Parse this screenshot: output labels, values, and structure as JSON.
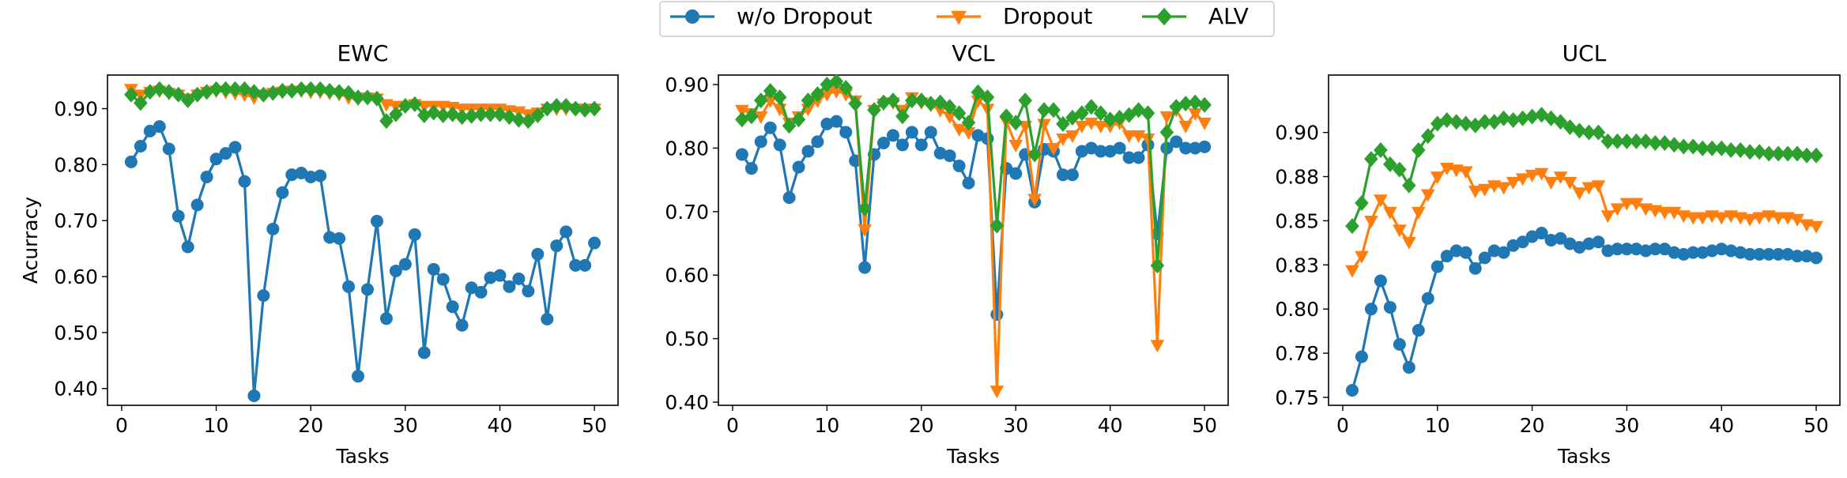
{
  "legend": {
    "placement": "top-center",
    "entries": [
      {
        "label": "w/o Dropout",
        "color": "#1f77b4",
        "marker": "circle"
      },
      {
        "label": "Dropout",
        "color": "#ff7f0e",
        "marker": "triangle-down"
      },
      {
        "label": "ALV",
        "color": "#2ca02c",
        "marker": "diamond"
      }
    ]
  },
  "chart_data": [
    {
      "type": "line",
      "title": "EWC",
      "xlabel": "Tasks",
      "ylabel": "Acurracy",
      "xlim": [
        -1.5,
        52.5
      ],
      "ylim": [
        0.37,
        0.96
      ],
      "xticks": [
        0,
        10,
        20,
        30,
        40,
        50
      ],
      "xtick_labels": [
        "0",
        "10",
        "20",
        "30",
        "40",
        "50"
      ],
      "yticks": [
        0.4,
        0.5,
        0.6,
        0.7,
        0.8,
        0.9
      ],
      "ytick_labels": [
        "0.40",
        "0.50",
        "0.60",
        "0.70",
        "0.80",
        "0.90"
      ],
      "grid": false,
      "x_start": 1,
      "series": [
        {
          "name": "w/o Dropout",
          "color": "#1f77b4",
          "marker": "circle",
          "values": [
            0.805,
            0.833,
            0.86,
            0.868,
            0.828,
            0.708,
            0.653,
            0.728,
            0.778,
            0.81,
            0.82,
            0.831,
            0.77,
            0.387,
            0.566,
            0.685,
            0.75,
            0.782,
            0.785,
            0.778,
            0.78,
            0.67,
            0.668,
            0.582,
            0.422,
            0.577,
            0.699,
            0.525,
            0.61,
            0.622,
            0.675,
            0.464,
            0.613,
            0.595,
            0.546,
            0.513,
            0.58,
            0.572,
            0.598,
            0.602,
            0.582,
            0.596,
            0.574,
            0.64,
            0.524,
            0.655,
            0.68,
            0.62,
            0.62,
            0.66
          ]
        },
        {
          "name": "Dropout",
          "color": "#ff7f0e",
          "marker": "triangle-down",
          "values": [
            0.935,
            0.925,
            0.93,
            0.932,
            0.928,
            0.925,
            0.918,
            0.925,
            0.93,
            0.932,
            0.93,
            0.928,
            0.925,
            0.92,
            0.925,
            0.928,
            0.93,
            0.932,
            0.932,
            0.93,
            0.93,
            0.928,
            0.926,
            0.92,
            0.918,
            0.92,
            0.918,
            0.908,
            0.905,
            0.905,
            0.908,
            0.905,
            0.905,
            0.905,
            0.903,
            0.9,
            0.9,
            0.9,
            0.9,
            0.9,
            0.897,
            0.895,
            0.89,
            0.893,
            0.9,
            0.9,
            0.9,
            0.9,
            0.9,
            0.9
          ]
        },
        {
          "name": "ALV",
          "color": "#2ca02c",
          "marker": "diamond",
          "values": [
            0.925,
            0.91,
            0.93,
            0.935,
            0.93,
            0.925,
            0.915,
            0.925,
            0.93,
            0.935,
            0.935,
            0.935,
            0.935,
            0.93,
            0.925,
            0.928,
            0.932,
            0.932,
            0.935,
            0.935,
            0.935,
            0.932,
            0.93,
            0.928,
            0.92,
            0.92,
            0.918,
            0.878,
            0.89,
            0.905,
            0.908,
            0.888,
            0.893,
            0.888,
            0.89,
            0.885,
            0.887,
            0.89,
            0.89,
            0.89,
            0.885,
            0.88,
            0.878,
            0.888,
            0.9,
            0.905,
            0.905,
            0.9,
            0.898,
            0.9
          ]
        }
      ]
    },
    {
      "type": "line",
      "title": "VCL",
      "xlabel": "Tasks",
      "ylabel": "",
      "xlim": [
        -1.5,
        52.5
      ],
      "ylim": [
        0.395,
        0.915
      ],
      "xticks": [
        0,
        10,
        20,
        30,
        40,
        50
      ],
      "xtick_labels": [
        "0",
        "10",
        "20",
        "30",
        "40",
        "50"
      ],
      "yticks": [
        0.4,
        0.5,
        0.6,
        0.7,
        0.8,
        0.9
      ],
      "ytick_labels": [
        "0.40",
        "0.50",
        "0.60",
        "0.70",
        "0.80",
        "0.90"
      ],
      "grid": false,
      "x_start": 1,
      "series": [
        {
          "name": "w/o Dropout",
          "color": "#1f77b4",
          "marker": "circle",
          "values": [
            0.79,
            0.768,
            0.81,
            0.832,
            0.805,
            0.722,
            0.77,
            0.795,
            0.81,
            0.838,
            0.842,
            0.825,
            0.78,
            0.612,
            0.79,
            0.808,
            0.82,
            0.805,
            0.825,
            0.805,
            0.825,
            0.792,
            0.788,
            0.772,
            0.745,
            0.82,
            0.815,
            0.538,
            0.768,
            0.76,
            0.79,
            0.715,
            0.798,
            0.795,
            0.758,
            0.758,
            0.795,
            0.8,
            0.795,
            0.795,
            0.8,
            0.785,
            0.785,
            0.805,
            0.665,
            0.8,
            0.81,
            0.8,
            0.8,
            0.802
          ]
        },
        {
          "name": "Dropout",
          "color": "#ff7f0e",
          "marker": "triangle-down",
          "values": [
            0.86,
            0.855,
            0.85,
            0.875,
            0.862,
            0.84,
            0.85,
            0.862,
            0.875,
            0.885,
            0.89,
            0.885,
            0.875,
            0.672,
            0.86,
            0.87,
            0.872,
            0.86,
            0.88,
            0.872,
            0.868,
            0.86,
            0.85,
            0.83,
            0.825,
            0.875,
            0.862,
            0.418,
            0.842,
            0.805,
            0.835,
            0.72,
            0.838,
            0.8,
            0.815,
            0.82,
            0.835,
            0.84,
            0.835,
            0.835,
            0.84,
            0.82,
            0.82,
            0.815,
            0.49,
            0.85,
            0.86,
            0.835,
            0.855,
            0.84
          ]
        },
        {
          "name": "ALV",
          "color": "#2ca02c",
          "marker": "diamond",
          "values": [
            0.845,
            0.85,
            0.875,
            0.89,
            0.88,
            0.835,
            0.845,
            0.875,
            0.885,
            0.9,
            0.905,
            0.895,
            0.87,
            0.705,
            0.86,
            0.872,
            0.875,
            0.85,
            0.875,
            0.875,
            0.87,
            0.872,
            0.865,
            0.855,
            0.84,
            0.888,
            0.88,
            0.678,
            0.85,
            0.84,
            0.875,
            0.79,
            0.86,
            0.86,
            0.838,
            0.848,
            0.855,
            0.865,
            0.855,
            0.845,
            0.848,
            0.852,
            0.86,
            0.855,
            0.615,
            0.825,
            0.865,
            0.87,
            0.872,
            0.868
          ]
        }
      ]
    },
    {
      "type": "line",
      "title": "UCL",
      "xlabel": "Tasks",
      "ylabel": "",
      "xlim": [
        -1.5,
        52.5
      ],
      "ylim": [
        0.7455,
        0.9325
      ],
      "xticks": [
        0,
        10,
        20,
        30,
        40,
        50
      ],
      "xtick_labels": [
        "0",
        "10",
        "20",
        "30",
        "40",
        "50"
      ],
      "yticks": [
        0.75,
        0.775,
        0.8,
        0.825,
        0.85,
        0.875,
        0.9
      ],
      "ytick_labels": [
        "0.75",
        "0.78",
        "0.80",
        "0.83",
        "0.85",
        "0.88",
        "0.90"
      ],
      "grid": false,
      "x_start": 1,
      "series": [
        {
          "name": "w/o Dropout",
          "color": "#1f77b4",
          "marker": "circle",
          "values": [
            0.754,
            0.773,
            0.8,
            0.816,
            0.801,
            0.78,
            0.767,
            0.788,
            0.806,
            0.824,
            0.83,
            0.833,
            0.832,
            0.823,
            0.829,
            0.833,
            0.832,
            0.836,
            0.838,
            0.841,
            0.843,
            0.839,
            0.84,
            0.837,
            0.835,
            0.837,
            0.838,
            0.833,
            0.834,
            0.834,
            0.834,
            0.833,
            0.834,
            0.834,
            0.832,
            0.831,
            0.832,
            0.832,
            0.833,
            0.834,
            0.833,
            0.832,
            0.831,
            0.831,
            0.831,
            0.831,
            0.831,
            0.83,
            0.83,
            0.829
          ]
        },
        {
          "name": "Dropout",
          "color": "#ff7f0e",
          "marker": "triangle-down",
          "values": [
            0.822,
            0.83,
            0.85,
            0.862,
            0.855,
            0.845,
            0.838,
            0.855,
            0.865,
            0.875,
            0.88,
            0.879,
            0.878,
            0.867,
            0.868,
            0.87,
            0.869,
            0.872,
            0.874,
            0.876,
            0.877,
            0.872,
            0.875,
            0.872,
            0.866,
            0.869,
            0.87,
            0.853,
            0.857,
            0.86,
            0.86,
            0.857,
            0.856,
            0.855,
            0.855,
            0.853,
            0.852,
            0.852,
            0.853,
            0.852,
            0.853,
            0.852,
            0.851,
            0.852,
            0.853,
            0.852,
            0.852,
            0.851,
            0.848,
            0.847
          ]
        },
        {
          "name": "ALV",
          "color": "#2ca02c",
          "marker": "diamond",
          "values": [
            0.847,
            0.86,
            0.885,
            0.89,
            0.882,
            0.879,
            0.87,
            0.89,
            0.898,
            0.905,
            0.907,
            0.906,
            0.905,
            0.904,
            0.906,
            0.906,
            0.908,
            0.907,
            0.908,
            0.909,
            0.91,
            0.908,
            0.906,
            0.903,
            0.901,
            0.9,
            0.9,
            0.895,
            0.895,
            0.895,
            0.895,
            0.895,
            0.894,
            0.894,
            0.893,
            0.892,
            0.892,
            0.891,
            0.891,
            0.891,
            0.89,
            0.89,
            0.889,
            0.889,
            0.888,
            0.888,
            0.888,
            0.888,
            0.887,
            0.887
          ]
        }
      ]
    }
  ]
}
